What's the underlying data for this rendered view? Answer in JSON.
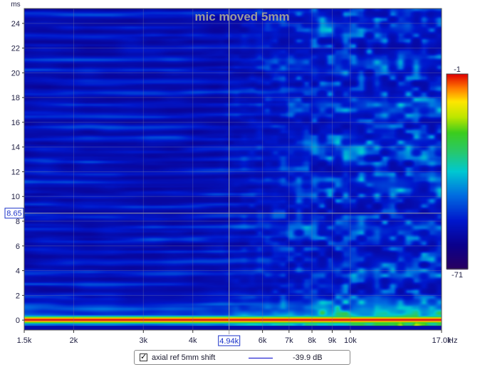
{
  "chart_data": {
    "type": "heatmap",
    "title": "mic moved 5mm",
    "y_unit": "ms",
    "x_unit": "Hz",
    "x_scale": "log",
    "xlim": [
      1500,
      17000
    ],
    "ylim": [
      -0.8,
      25.2
    ],
    "x_ticks": [
      {
        "value": 1500,
        "label": "1.5k"
      },
      {
        "value": 2000,
        "label": "2k"
      },
      {
        "value": 3000,
        "label": "3k"
      },
      {
        "value": 4000,
        "label": "4k"
      },
      {
        "value": 6000,
        "label": "6k"
      },
      {
        "value": 7000,
        "label": "7k"
      },
      {
        "value": 8000,
        "label": "8k"
      },
      {
        "value": 9000,
        "label": "9k"
      },
      {
        "value": 10000,
        "label": "10k"
      },
      {
        "value": 17000,
        "label": "17.0k"
      }
    ],
    "y_ticks": [
      0,
      2,
      4,
      6,
      8,
      10,
      12,
      14,
      16,
      18,
      20,
      22,
      24
    ],
    "cursor": {
      "x": 4940,
      "x_label": "4.94k",
      "y": 8.65,
      "y_label": "8.65"
    },
    "colorbar": {
      "max_label": "-1",
      "min_label": "-71",
      "max": -1,
      "min": -71
    },
    "colors": {
      "grid": "#7a7aa0",
      "cursor": "#a0a0a0",
      "cursor_label": "#1a32c8",
      "title": "#9a9a9a",
      "tick": "#222244"
    }
  },
  "legend": {
    "checked": true,
    "check_glyph": "✓",
    "name": "axial ref 5mm shift",
    "value": "-39.9 dB",
    "line_color": "#0000cc"
  }
}
